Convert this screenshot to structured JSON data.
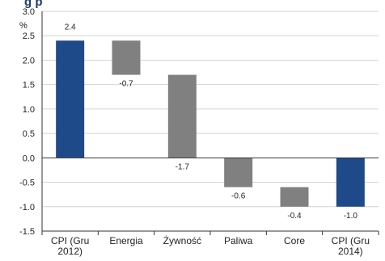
{
  "chart_data": {
    "type": "bar",
    "subtype": "waterfall",
    "title_fragment": "g p",
    "unit_label": "%",
    "categories": [
      [
        "CPI (Gru",
        "2012)"
      ],
      [
        "Energia"
      ],
      [
        "Żywność"
      ],
      [
        "Paliwa"
      ],
      [
        "Core"
      ],
      [
        "CPI (Gru",
        "2014)"
      ]
    ],
    "bars": [
      {
        "start": 0.0,
        "end": 2.4,
        "label": "2.4",
        "kind": "total"
      },
      {
        "start": 2.4,
        "end": 1.7,
        "label": "-0.7",
        "kind": "change"
      },
      {
        "start": 1.7,
        "end": 0.0,
        "label": "-1.7",
        "kind": "change"
      },
      {
        "start": 0.0,
        "end": -0.6,
        "label": "-0.6",
        "kind": "change"
      },
      {
        "start": -0.6,
        "end": -1.0,
        "label": "-0.4",
        "kind": "change"
      },
      {
        "start": 0.0,
        "end": -1.0,
        "label": "-1.0",
        "kind": "total"
      }
    ],
    "ylim": [
      -1.5,
      3.0
    ],
    "yticks": [
      "3.0",
      "2.5",
      "2.0",
      "1.5",
      "1.0",
      "0.5",
      "0.0",
      "-0.5",
      "-1.0",
      "-1.5"
    ],
    "grid": true,
    "colors": {
      "total": "#1f4a8a",
      "change": "#808080",
      "grid": "#d4d4d4",
      "axis": "#333333"
    }
  }
}
